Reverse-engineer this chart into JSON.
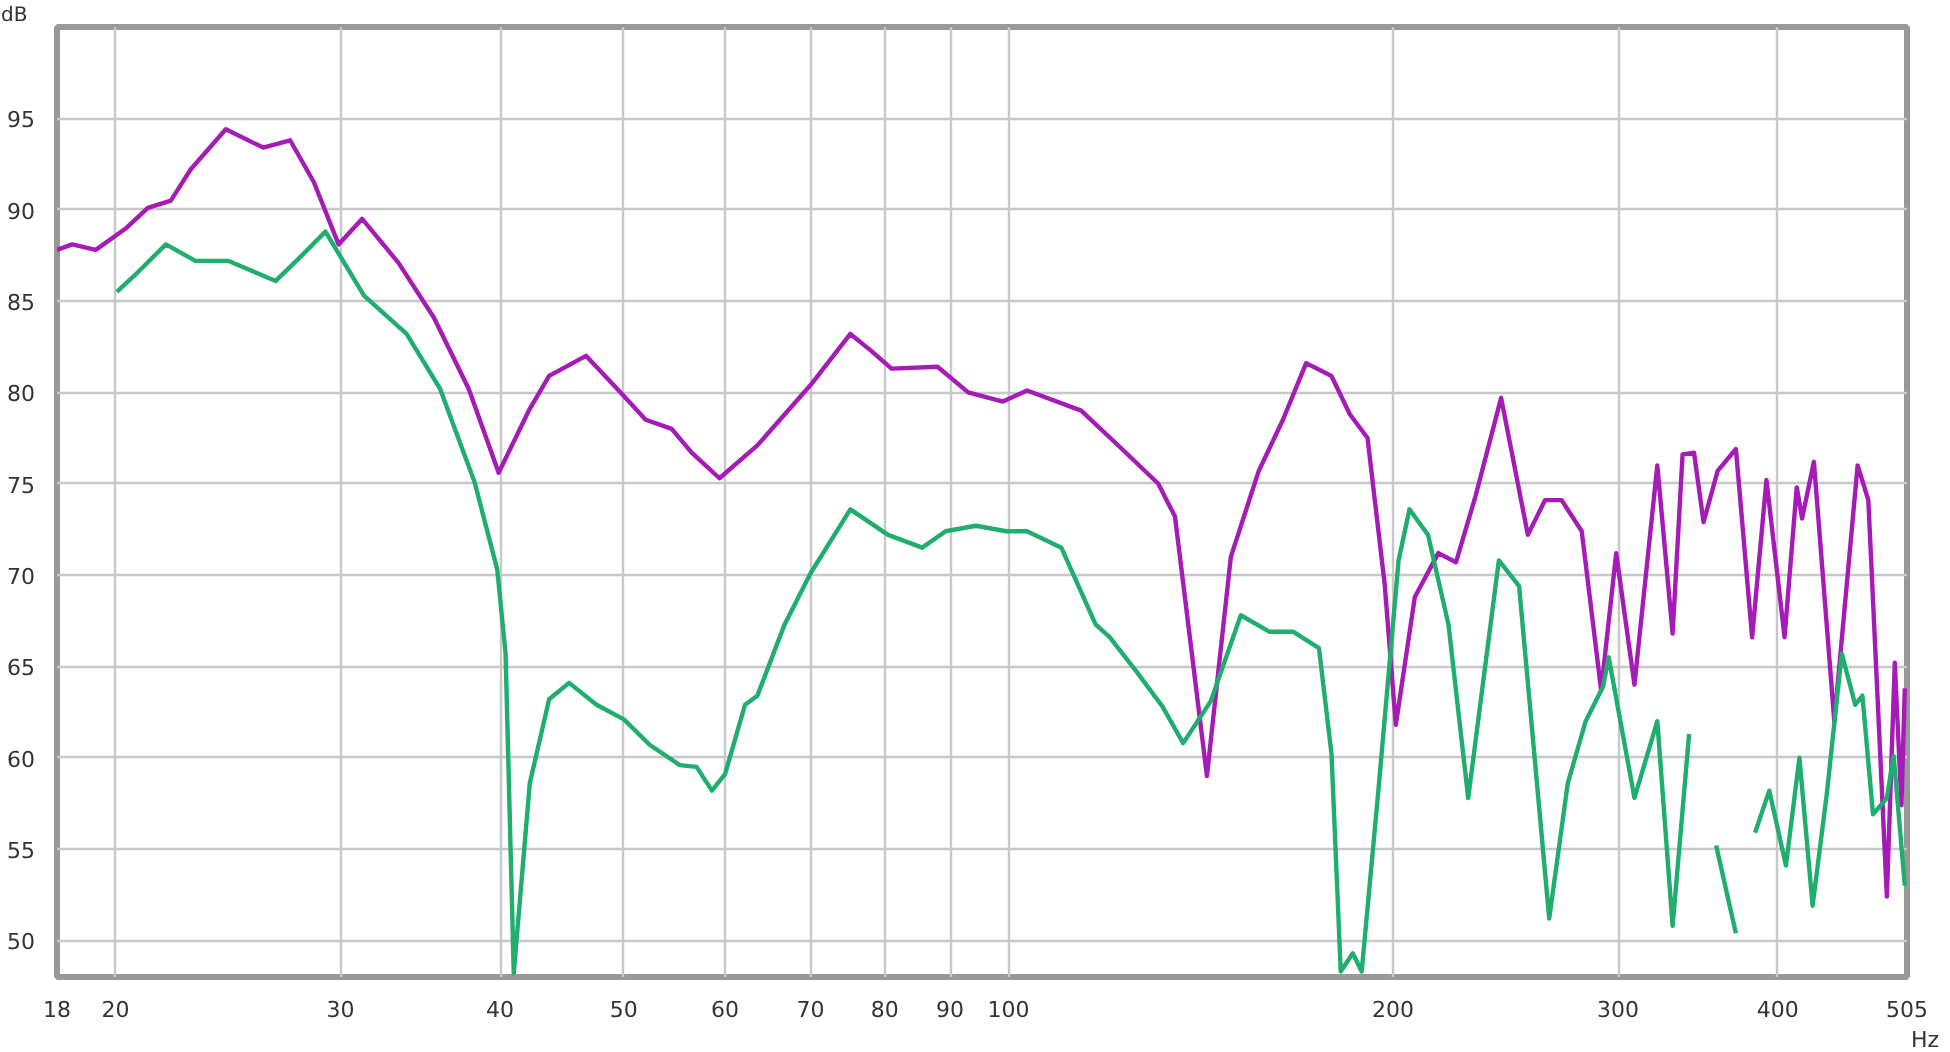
{
  "chart_data": {
    "type": "line",
    "xlabel": "Hz",
    "ylabel": "dB",
    "log": "x",
    "grid": true,
    "line_style": "solid",
    "xlim": [
      18,
      505
    ],
    "ylim": [
      48,
      100
    ],
    "xticks": [
      18,
      20,
      30,
      40,
      50,
      60,
      70,
      80,
      90,
      100,
      200,
      300,
      400,
      505
    ],
    "yticks": [
      50,
      55,
      60,
      65,
      70,
      75,
      80,
      85,
      90,
      95
    ],
    "series": [
      {
        "color": "#a51bb5",
        "x": [
          18,
          18.5,
          19.3,
          20.4,
          21.2,
          22.1,
          22.9,
          24.4,
          26.1,
          27.4,
          28.6,
          29.9,
          31.2,
          33.3,
          35.5,
          37.8,
          39.9,
          42.2,
          43.7,
          46.7,
          50,
          52,
          54.5,
          56.5,
          59.4,
          63.6,
          70,
          75.2,
          78,
          81,
          88,
          93,
          99,
          103.4,
          114,
          122.7,
          131,
          135,
          143,
          149.3,
          157,
          164,
          171,
          179,
          185,
          191,
          197,
          201,
          208,
          217,
          224,
          232,
          243,
          255,
          263,
          271,
          281,
          291,
          299,
          309,
          322,
          331,
          337,
          344,
          350,
          359,
          371,
          382,
          392,
          405,
          414,
          418,
          427,
          443,
          462,
          471,
          487,
          494,
          500,
          503
        ],
        "values": [
          87.8,
          88.1,
          87.8,
          89.0,
          90.1,
          90.5,
          92.2,
          94.4,
          93.4,
          93.8,
          91.5,
          88.1,
          89.5,
          87.1,
          84.1,
          80.2,
          75.6,
          79.1,
          80.9,
          82.0,
          79.8,
          78.5,
          78.0,
          76.7,
          75.3,
          77.1,
          80.4,
          83.2,
          82.3,
          81.3,
          81.4,
          80.0,
          79.5,
          80.1,
          79.0,
          76.9,
          75.0,
          73.2,
          59.0,
          71.0,
          75.7,
          78.5,
          81.6,
          80.9,
          78.8,
          77.5,
          69.5,
          61.8,
          68.8,
          71.2,
          70.7,
          74.3,
          79.7,
          72.2,
          74.1,
          74.1,
          72.4,
          63.7,
          71.2,
          64.0,
          76.0,
          66.8,
          76.6,
          76.7,
          72.9,
          75.7,
          76.9,
          66.6,
          75.2,
          66.6,
          74.8,
          73.1,
          76.2,
          62.0,
          76.0,
          74.1,
          52.4,
          65.2,
          57.4,
          63.8
        ]
      },
      {
        "color": "#1fae6e",
        "x": [
          20.05,
          20.7,
          21.9,
          23.1,
          24.5,
          26.7,
          27.9,
          29.2,
          31.3,
          33.8,
          35.9,
          38.2,
          39.8,
          40.4,
          41.0,
          42.2,
          43.7,
          45.3,
          47.6,
          50,
          52.4,
          55.3,
          57,
          58.6,
          60,
          62.2,
          63.6,
          66.8,
          70,
          75.2,
          80.5,
          85.6,
          89.3,
          94.3,
          99.6,
          103.4,
          110,
          117,
          120,
          126,
          132,
          137,
          144,
          152,
          160,
          167,
          175,
          179,
          182,
          186,
          189,
          195,
          202,
          206,
          213,
          221,
          229,
          242,
          251,
          265,
          274,
          283,
          292,
          295,
          309,
          322,
          331,
          341,
          352,
          358,
          371,
          375,
          384,
          394,
          406,
          416,
          426,
          437,
          449,
          460,
          466,
          475,
          487,
          493,
          503
        ],
        "values": [
          85.5,
          86.4,
          88.1,
          87.2,
          87.2,
          86.1,
          87.4,
          88.8,
          85.3,
          83.2,
          80.2,
          75.1,
          70.3,
          65.7,
          48.2,
          58.6,
          63.2,
          64.1,
          62.9,
          62.1,
          60.7,
          59.6,
          59.5,
          58.2,
          59.1,
          62.9,
          63.4,
          67.3,
          70.1,
          73.6,
          72.2,
          71.5,
          72.4,
          72.7,
          72.4,
          72.4,
          71.5,
          67.3,
          66.6,
          64.7,
          62.8,
          60.8,
          63.1,
          67.8,
          66.9,
          66.9,
          66.0,
          60.2,
          48.3,
          49.3,
          48.3,
          58.6,
          70.8,
          73.6,
          72.2,
          67.3,
          57.8,
          70.8,
          69.4,
          51.2,
          58.6,
          62.0,
          63.9,
          65.5,
          57.8,
          62.0,
          50.8,
          61.3,
          null,
          55.2,
          50.4,
          null,
          55.9,
          58.2,
          54.1,
          60.0,
          51.9,
          58.0,
          65.7,
          62.9,
          63.4,
          56.9,
          57.8,
          60.1,
          53.0
        ]
      }
    ]
  }
}
